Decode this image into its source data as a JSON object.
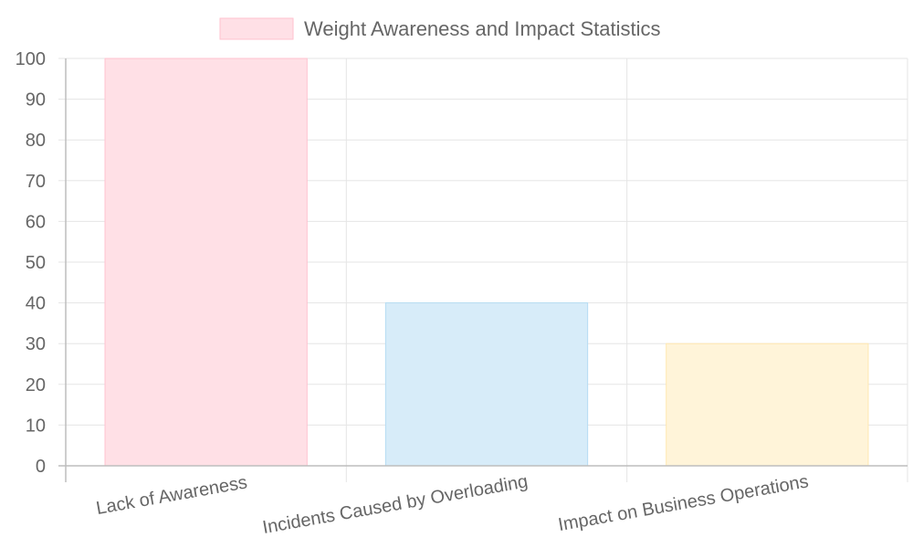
{
  "chart_data": {
    "type": "bar",
    "categories": [
      "Lack of Awareness",
      "Incidents Caused by Overloading",
      "Impact on Business Operations"
    ],
    "series": [
      {
        "name": "Weight Awareness and Impact Statistics",
        "values": [
          100,
          40,
          30
        ]
      }
    ],
    "ylim": [
      0,
      100
    ],
    "yticks": [
      0,
      10,
      20,
      30,
      40,
      50,
      60,
      70,
      80,
      90,
      100
    ],
    "grid": true,
    "legend_position": "top-center",
    "colors": {
      "bar_fills": [
        "#ffe0e6",
        "#d7ecf9",
        "#fff4d9"
      ],
      "bar_strokes": [
        "#ffc2cf",
        "#b5dcf3",
        "#ffe7b0"
      ],
      "legend_swatch": "#ffe0e6",
      "legend_swatch_border": "#ffc2cf",
      "grid": "#e5e5e5",
      "axis": "#bdbdbd",
      "text": "#666666"
    }
  }
}
